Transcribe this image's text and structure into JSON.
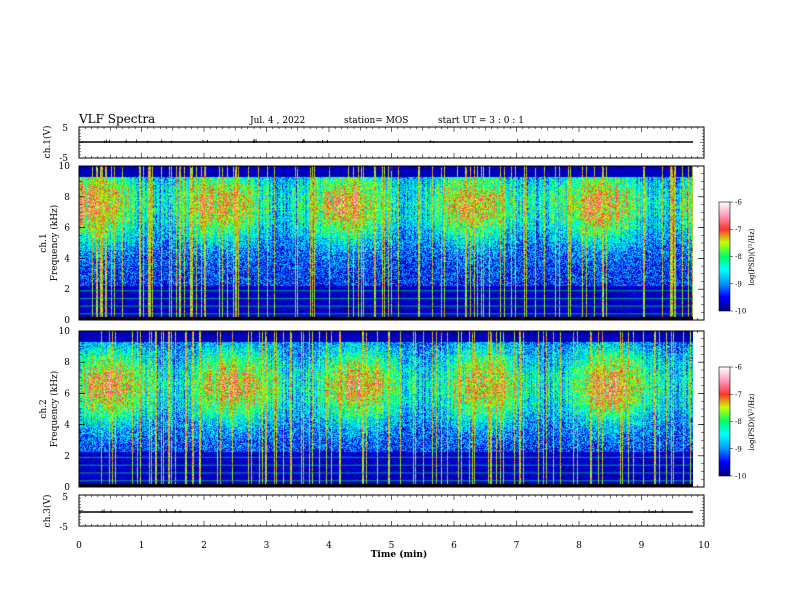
{
  "header": {
    "title": "VLF Spectra",
    "date": "Jul. 4 , 2022",
    "station": "station= MOS",
    "start": "start UT = 3 : 0 : 1"
  },
  "colors": {
    "colormap": [
      "#000080",
      "#0000ff",
      "#0096ff",
      "#00ffff",
      "#00ff64",
      "#c8ff00",
      "#ff3232",
      "#ff9ec0",
      "#ffffff"
    ]
  },
  "chart_data": [
    {
      "type": "line",
      "name": "ch1 voltage",
      "ylabel": "ch.1(V)",
      "ylim": [
        -5,
        5
      ],
      "yticks": [
        "5",
        "-5"
      ],
      "xlim": [
        0,
        10
      ],
      "baseline": 0
    },
    {
      "type": "heatmap",
      "name": "ch1 spectrogram",
      "ylabel": "ch.1\nFrequency (kHz)",
      "ylabel_line1": "ch.1",
      "ylabel_line2": "Frequency (kHz)",
      "ylim": [
        0,
        10
      ],
      "yticks": [
        "0",
        "2",
        "4",
        "6",
        "8",
        "10"
      ],
      "xlim": [
        0,
        9.85
      ],
      "band_center_khz": 7.5,
      "band_width_khz": 2.5,
      "colorbar": {
        "label": "log(PSD)(V²/Hz)",
        "range": [
          -10,
          -6
        ],
        "ticks": [
          "-6",
          "-7",
          "-8",
          "-9",
          "-10"
        ]
      }
    },
    {
      "type": "heatmap",
      "name": "ch2 spectrogram",
      "ylabel": "ch.2\nFrequency (kHz)",
      "ylabel_line1": "ch.2",
      "ylabel_line2": "Frequency (kHz)",
      "ylim": [
        0,
        10
      ],
      "yticks": [
        "0",
        "2",
        "4",
        "6",
        "8",
        "10"
      ],
      "xlim": [
        0,
        9.85
      ],
      "band_center_khz": 6.5,
      "band_width_khz": 2.5,
      "colorbar": {
        "label": "log(PSD)(V²/Hz)",
        "range": [
          -10,
          -6
        ],
        "ticks": [
          "-6",
          "-7",
          "-8",
          "-9",
          "-10"
        ]
      }
    },
    {
      "type": "line",
      "name": "ch3 voltage",
      "ylabel": "ch.3(V)",
      "ylim": [
        -5,
        5
      ],
      "yticks": [
        "5",
        "-5"
      ],
      "xlim": [
        0,
        10
      ],
      "baseline": 0,
      "xlabel": "Time (min)",
      "xticks": [
        "0",
        "1",
        "2",
        "3",
        "4",
        "5",
        "6",
        "7",
        "8",
        "9",
        "10"
      ]
    }
  ]
}
